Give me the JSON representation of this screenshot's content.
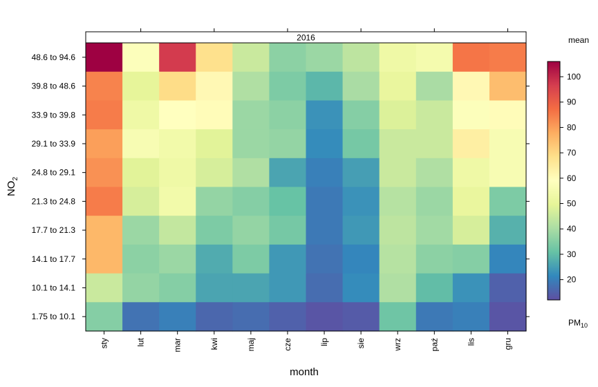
{
  "chart_data": {
    "type": "heatmap",
    "panel_title": "2016",
    "xlabel": "month",
    "ylabel": {
      "main": "NO",
      "sub": "2"
    },
    "categories_x": [
      "sty",
      "lut",
      "mar",
      "kwi",
      "maj",
      "cze",
      "lip",
      "sie",
      "wrz",
      "paź",
      "lis",
      "gru"
    ],
    "categories_y": [
      "48.6 to 94.6",
      "39.8 to 48.6",
      "33.9 to 39.8",
      "29.1 to 33.9",
      "24.8 to 29.1",
      "21.3 to 24.8",
      "17.7 to 21.3",
      "14.1 to 17.7",
      "10.1 to 14.1",
      "1.75 to 10.1"
    ],
    "values": [
      [
        106,
        58,
        97,
        68,
        45,
        36,
        38,
        43,
        53,
        55,
        86,
        85
      ],
      [
        84,
        50,
        69,
        61,
        41,
        34,
        29,
        40,
        51,
        40,
        61,
        75
      ],
      [
        85,
        53,
        59,
        60,
        38,
        36,
        23,
        35,
        48,
        45,
        58,
        60
      ],
      [
        80,
        56,
        54,
        49,
        38,
        37,
        22,
        33,
        45,
        45,
        64,
        56
      ],
      [
        82,
        49,
        53,
        47,
        41,
        26,
        20,
        25,
        45,
        41,
        53,
        56
      ],
      [
        85,
        47,
        54,
        37,
        35,
        31,
        19,
        23,
        42,
        38,
        51,
        34
      ],
      [
        76,
        38,
        44,
        34,
        37,
        33,
        19,
        24,
        43,
        39,
        47,
        28
      ],
      [
        76,
        36,
        38,
        27,
        34,
        24,
        18,
        21,
        42,
        36,
        35,
        21
      ],
      [
        45,
        37,
        35,
        26,
        26,
        24,
        17,
        22,
        41,
        30,
        23,
        15
      ],
      [
        35,
        18,
        20,
        16,
        17,
        15,
        13,
        14,
        32,
        19,
        20,
        13
      ]
    ],
    "colorbar": {
      "title": "mean",
      "label": {
        "main": "PM",
        "sub": "10"
      },
      "min": 12,
      "max": 106,
      "ticks": [
        20,
        30,
        40,
        50,
        60,
        70,
        80,
        90,
        100
      ]
    },
    "colormap": [
      "#5e4fa2",
      "#3288bd",
      "#66c2a5",
      "#abdda4",
      "#e6f598",
      "#ffffbf",
      "#fee08b",
      "#fdae61",
      "#f46d43",
      "#d53e4f",
      "#9e0142"
    ]
  }
}
